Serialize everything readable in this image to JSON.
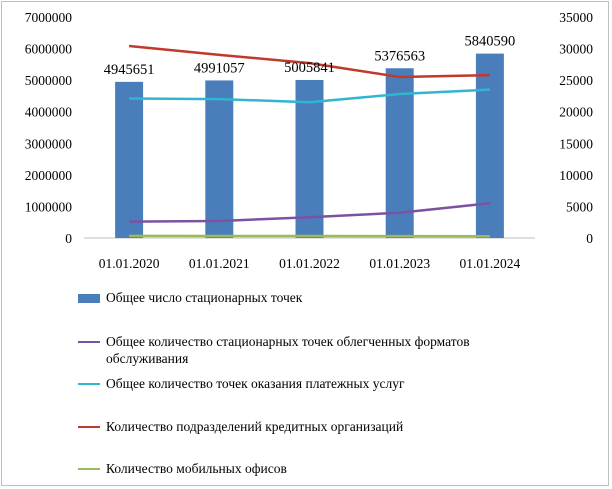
{
  "chart_data": {
    "type": "bar+line",
    "categories": [
      "01.01.2020",
      "01.01.2021",
      "01.01.2022",
      "01.01.2023",
      "01.01.2024"
    ],
    "y_left": {
      "min": 0,
      "max": 7000000,
      "ticks": [
        "0",
        "1000000",
        "2000000",
        "3000000",
        "4000000",
        "5000000",
        "6000000",
        "7000000"
      ]
    },
    "y_right": {
      "min": 0,
      "max": 35000,
      "ticks": [
        "0",
        "5000",
        "10000",
        "15000",
        "20000",
        "25000",
        "30000",
        "35000"
      ]
    },
    "bars": {
      "name": "Общее число стационарных точек",
      "axis": "left",
      "color": "#4a7ebb",
      "values": [
        4945651,
        4991057,
        5005841,
        5376563,
        5840590
      ],
      "labels": [
        "4945651",
        "4991057",
        "5005841",
        "5376563",
        "5840590"
      ]
    },
    "series": [
      {
        "name": "Общее количество стационарных точек облегченных форматов обслуживания",
        "axis": "right",
        "color": "#7b52a0",
        "values": [
          2600,
          2700,
          3300,
          4000,
          5500
        ]
      },
      {
        "name": "Общее количество точек оказания платежных услуг",
        "axis": "right",
        "color": "#31b6d2",
        "values": [
          22100,
          22000,
          21500,
          22800,
          23500
        ]
      },
      {
        "name": "Количество подразделений кредитных организаций",
        "axis": "right",
        "color": "#c0392b",
        "values": [
          30400,
          29000,
          27700,
          25500,
          25800
        ]
      },
      {
        "name": "Количество мобильных офисов",
        "axis": "right",
        "color": "#9bbb59",
        "values": [
          330,
          320,
          310,
          300,
          280
        ]
      }
    ],
    "grid": false,
    "legend_position": "bottom"
  }
}
